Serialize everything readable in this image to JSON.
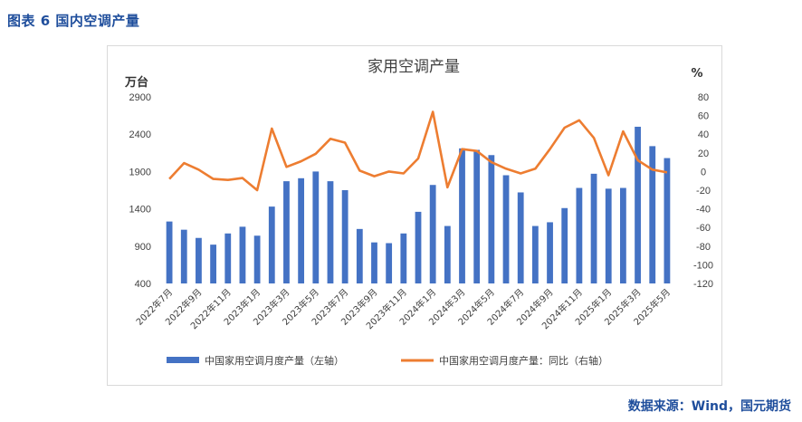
{
  "figure_label": "图表 6 国内空调产量",
  "source": "数据来源：Wind，国元期货",
  "chart_data": {
    "type": "bar",
    "title": "家用空调产量",
    "left_unit": "万台",
    "right_unit": "%",
    "categories": [
      "2022年7月",
      "2022年8月",
      "2022年9月",
      "2022年10月",
      "2022年11月",
      "2022年12月",
      "2023年1月",
      "2023年2月",
      "2023年3月",
      "2023年4月",
      "2023年5月",
      "2023年6月",
      "2023年7月",
      "2023年8月",
      "2023年9月",
      "2023年10月",
      "2023年11月",
      "2023年12月",
      "2024年1月",
      "2024年2月",
      "2024年3月",
      "2024年4月",
      "2024年5月",
      "2024年6月",
      "2024年7月",
      "2024年8月",
      "2024年9月",
      "2024年10月",
      "2024年11月",
      "2024年12月",
      "2025年1月",
      "2025年2月",
      "2025年3月",
      "2025年4月",
      "2025年5月"
    ],
    "x_tick_labels": [
      "2022年7月",
      "2022年9月",
      "2022年11月",
      "2023年1月",
      "2023年3月",
      "2023年5月",
      "2023年7月",
      "2023年9月",
      "2023年11月",
      "2024年1月",
      "2024年3月",
      "2024年5月",
      "2024年7月",
      "2024年9月",
      "2024年11月",
      "2025年1月",
      "2025年3月",
      "2025年5月"
    ],
    "yleft_ticks": [
      400,
      900,
      1400,
      1900,
      2400,
      2900
    ],
    "yleft_lim": [
      400,
      2900
    ],
    "yright_ticks": [
      -120,
      -100,
      -80,
      -60,
      -40,
      -20,
      0,
      20,
      40,
      60,
      80
    ],
    "yright_lim": [
      -120,
      80
    ],
    "series": [
      {
        "name": "中国家用空调月度产量（左轴）",
        "type": "bar",
        "axis": "left",
        "color": "#4472c4",
        "values": [
          1230,
          1120,
          1010,
          920,
          1070,
          1160,
          1040,
          1430,
          1770,
          1810,
          1900,
          1770,
          1650,
          1130,
          950,
          940,
          1070,
          1360,
          1720,
          1170,
          2210,
          2190,
          2120,
          1850,
          1620,
          1170,
          1220,
          1410,
          1680,
          1870,
          1670,
          1680,
          2500,
          2240,
          2080
        ]
      },
      {
        "name": "中国家用空调月度产量：同比（右轴）",
        "type": "line",
        "axis": "right",
        "color": "#ed7d31",
        "values": [
          -8,
          9,
          2,
          -8,
          -9,
          -7,
          -20,
          46,
          5,
          11,
          19,
          35,
          31,
          1,
          -5,
          0,
          -2,
          14,
          64,
          -17,
          24,
          22,
          10,
          3,
          -2,
          3,
          24,
          47,
          55,
          36,
          -4,
          43,
          12,
          2,
          -1
        ]
      }
    ],
    "legend": "bottom",
    "grid": false
  }
}
